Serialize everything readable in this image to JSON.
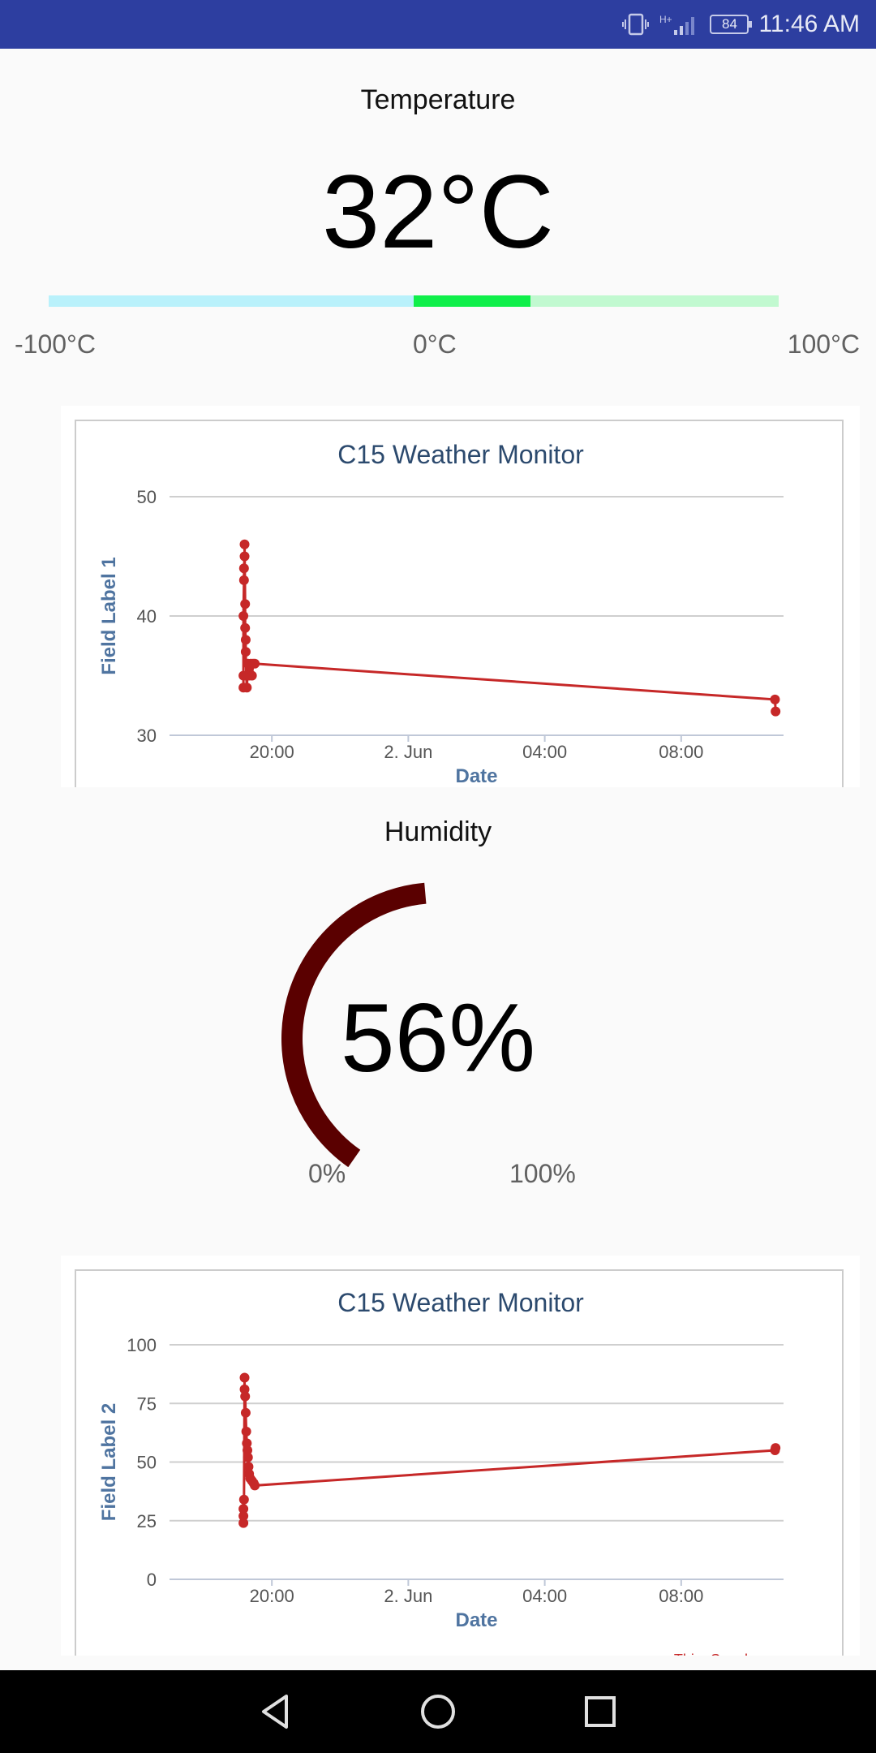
{
  "status_bar": {
    "time": "11:46 AM",
    "battery": "84",
    "network": "H+"
  },
  "temperature": {
    "title": "Temperature",
    "value": "32°C",
    "min_label": "-100°C",
    "zero_label": "0°C",
    "max_label": "100°C",
    "level": 32,
    "range": [
      -100,
      100
    ],
    "colors": {
      "cold": "#b9f1fb",
      "active": "#0fef4a",
      "warm": "#c1f9d0"
    }
  },
  "chart1": {
    "title": "C15 Weather Monitor",
    "ylabel": "Field Label 1",
    "xlabel": "Date",
    "yticks": [
      "30",
      "40",
      "50"
    ],
    "xticks": [
      "20:00",
      "2. Jun",
      "04:00",
      "08:00"
    ],
    "footer": ""
  },
  "humidity": {
    "title": "Humidity",
    "value": "56%",
    "min_label": "0%",
    "max_label": "100%",
    "level": 56,
    "color": "#5a0000"
  },
  "chart2": {
    "title": "C15 Weather Monitor",
    "ylabel": "Field Label 2",
    "xlabel": "Date",
    "yticks": [
      "0",
      "25",
      "50",
      "75",
      "100"
    ],
    "xticks": [
      "20:00",
      "2. Jun",
      "04:00",
      "08:00"
    ],
    "footer": "ThingSpeak.com"
  },
  "chart_data": [
    {
      "type": "line",
      "title": "C15 Weather Monitor",
      "xlabel": "Date",
      "ylabel": "Field Label 1",
      "ylim": [
        30,
        50
      ],
      "x_ticks": [
        "20:00",
        "2. Jun",
        "04:00",
        "08:00"
      ],
      "series": [
        {
          "color": "#c62828",
          "points": [
            [
              "1 Jun 19:10",
              35
            ],
            [
              "1 Jun 19:10",
              34
            ],
            [
              "1 Jun 19:10",
              40
            ],
            [
              "1 Jun 19:11",
              43
            ],
            [
              "1 Jun 19:11",
              44
            ],
            [
              "1 Jun 19:12",
              45
            ],
            [
              "1 Jun 19:12",
              46
            ],
            [
              "1 Jun 19:13",
              41
            ],
            [
              "1 Jun 19:13",
              39
            ],
            [
              "1 Jun 19:14",
              38
            ],
            [
              "1 Jun 19:14",
              37
            ],
            [
              "1 Jun 19:15",
              35
            ],
            [
              "1 Jun 19:16",
              34
            ],
            [
              "1 Jun 19:18",
              36
            ],
            [
              "1 Jun 19:20",
              35
            ],
            [
              "1 Jun 19:23",
              36
            ],
            [
              "1 Jun 19:25",
              35
            ],
            [
              "1 Jun 19:27",
              36
            ],
            [
              "1 Jun 19:30",
              36
            ],
            [
              "2 Jun 10:45",
              33
            ],
            [
              "2 Jun 10:46",
              32
            ]
          ]
        }
      ]
    },
    {
      "type": "line",
      "title": "C15 Weather Monitor",
      "xlabel": "Date",
      "ylabel": "Field Label 2",
      "ylim": [
        0,
        100
      ],
      "x_ticks": [
        "20:00",
        "2. Jun",
        "04:00",
        "08:00"
      ],
      "series": [
        {
          "color": "#c62828",
          "points": [
            [
              "1 Jun 19:10",
              24
            ],
            [
              "1 Jun 19:10",
              27
            ],
            [
              "1 Jun 19:10",
              30
            ],
            [
              "1 Jun 19:11",
              34
            ],
            [
              "1 Jun 19:12",
              86
            ],
            [
              "1 Jun 19:12",
              81
            ],
            [
              "1 Jun 19:13",
              78
            ],
            [
              "1 Jun 19:14",
              71
            ],
            [
              "1 Jun 19:15",
              63
            ],
            [
              "1 Jun 19:16",
              58
            ],
            [
              "1 Jun 19:17",
              55
            ],
            [
              "1 Jun 19:18",
              52
            ],
            [
              "1 Jun 19:19",
              48
            ],
            [
              "1 Jun 19:20",
              45
            ],
            [
              "1 Jun 19:22",
              43
            ],
            [
              "1 Jun 19:25",
              42
            ],
            [
              "1 Jun 19:28",
              41
            ],
            [
              "1 Jun 19:30",
              40
            ],
            [
              "2 Jun 10:45",
              55
            ],
            [
              "2 Jun 10:46",
              56
            ]
          ]
        }
      ]
    }
  ]
}
